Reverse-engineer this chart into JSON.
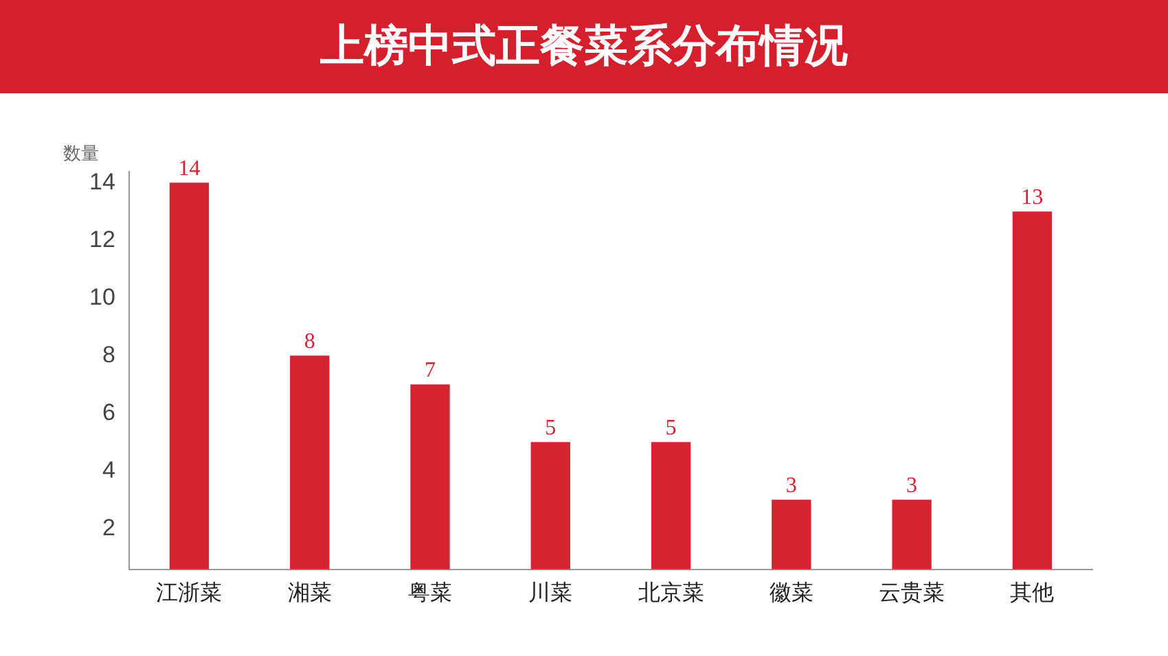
{
  "chart_data": {
    "type": "bar",
    "title": "上榜中式正餐菜系分布情况",
    "ylabel": "数量",
    "categories": [
      "江浙菜",
      "湘菜",
      "粤菜",
      "川菜",
      "北京菜",
      "徽菜",
      "云贵菜",
      "其他"
    ],
    "values": [
      14,
      8,
      7,
      5,
      5,
      3,
      3,
      13
    ],
    "color": "#d7222f",
    "ylim": [
      0.6,
      14.4
    ],
    "yticks": [
      2,
      4,
      6,
      8,
      10,
      12,
      14
    ],
    "grid": false,
    "data_labels": true,
    "legend": false
  }
}
